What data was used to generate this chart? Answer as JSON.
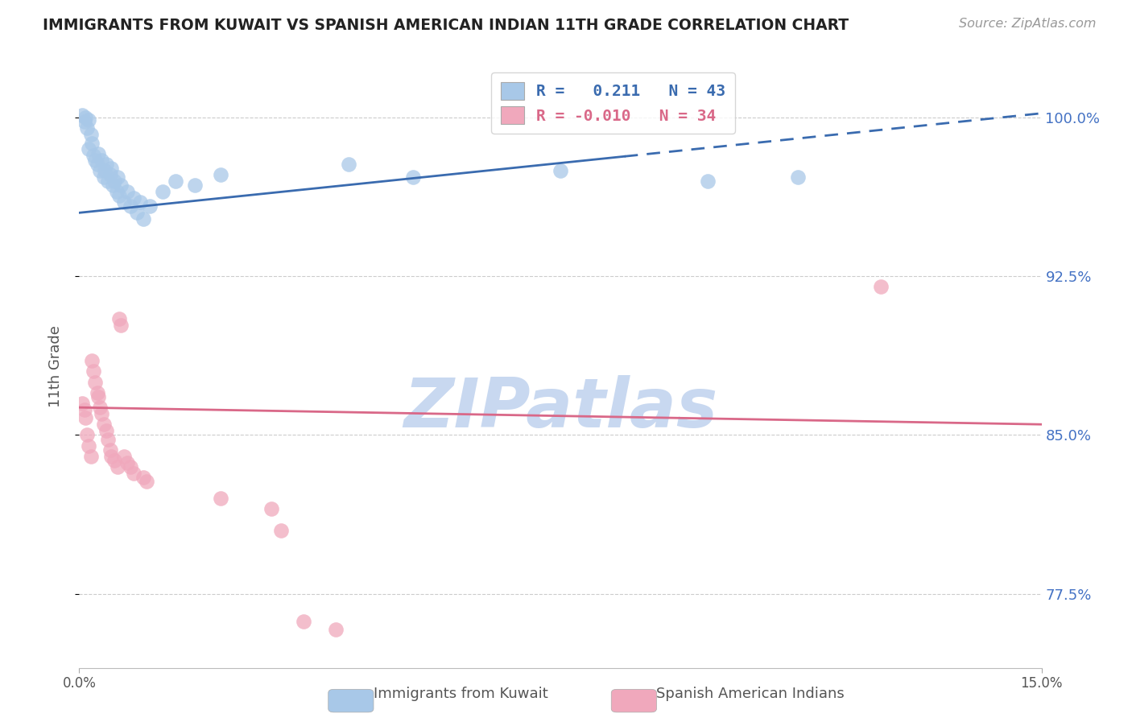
{
  "title": "IMMIGRANTS FROM KUWAIT VS SPANISH AMERICAN INDIAN 11TH GRADE CORRELATION CHART",
  "source": "Source: ZipAtlas.com",
  "ylabel_label": "11th Grade",
  "legend_label1": "Immigrants from Kuwait",
  "legend_label2": "Spanish American Indians",
  "R1": 0.211,
  "N1": 43,
  "R2": -0.01,
  "N2": 34,
  "xlim": [
    0.0,
    15.0
  ],
  "ylim": [
    74.0,
    102.5
  ],
  "yticks": [
    77.5,
    85.0,
    92.5,
    100.0
  ],
  "background_color": "#ffffff",
  "blue_color": "#A8C8E8",
  "pink_color": "#F0A8BC",
  "blue_line_color": "#3A6BAF",
  "pink_line_color": "#D96888",
  "blue_line_y0": 95.5,
  "blue_line_y15": 100.2,
  "blue_solid_end_x": 8.5,
  "pink_line_y0": 86.3,
  "pink_line_y15": 85.5,
  "watermark": "ZIPatlas",
  "watermark_color": "#C8D8F0",
  "blue_scatter_x": [
    0.05,
    0.08,
    0.1,
    0.12,
    0.15,
    0.15,
    0.18,
    0.2,
    0.22,
    0.25,
    0.28,
    0.3,
    0.32,
    0.35,
    0.38,
    0.4,
    0.42,
    0.45,
    0.48,
    0.5,
    0.52,
    0.55,
    0.58,
    0.6,
    0.62,
    0.65,
    0.7,
    0.75,
    0.8,
    0.85,
    0.9,
    0.95,
    1.0,
    1.1,
    1.3,
    1.5,
    1.8,
    2.2,
    4.2,
    5.2,
    7.5,
    9.8,
    11.2
  ],
  "blue_scatter_y": [
    100.1,
    99.8,
    100.0,
    99.5,
    99.9,
    98.5,
    99.2,
    98.8,
    98.2,
    98.0,
    97.8,
    98.3,
    97.5,
    98.0,
    97.2,
    97.5,
    97.8,
    97.0,
    97.3,
    97.6,
    96.8,
    97.0,
    96.5,
    97.2,
    96.3,
    96.8,
    96.0,
    96.5,
    95.8,
    96.2,
    95.5,
    96.0,
    95.2,
    95.8,
    96.5,
    97.0,
    96.8,
    97.3,
    97.8,
    97.2,
    97.5,
    97.0,
    97.2
  ],
  "pink_scatter_x": [
    0.05,
    0.08,
    0.1,
    0.12,
    0.15,
    0.18,
    0.2,
    0.22,
    0.25,
    0.28,
    0.3,
    0.32,
    0.35,
    0.38,
    0.42,
    0.45,
    0.48,
    0.5,
    0.55,
    0.6,
    0.62,
    0.65,
    0.7,
    0.75,
    0.8,
    0.85,
    1.0,
    1.05,
    2.2,
    3.0,
    3.15,
    3.5,
    4.0,
    12.5
  ],
  "pink_scatter_y": [
    86.5,
    86.2,
    85.8,
    85.0,
    84.5,
    84.0,
    88.5,
    88.0,
    87.5,
    87.0,
    86.8,
    86.3,
    86.0,
    85.5,
    85.2,
    84.8,
    84.3,
    84.0,
    83.8,
    83.5,
    90.5,
    90.2,
    84.0,
    83.7,
    83.5,
    83.2,
    83.0,
    82.8,
    82.0,
    81.5,
    80.5,
    76.2,
    75.8,
    92.0
  ]
}
